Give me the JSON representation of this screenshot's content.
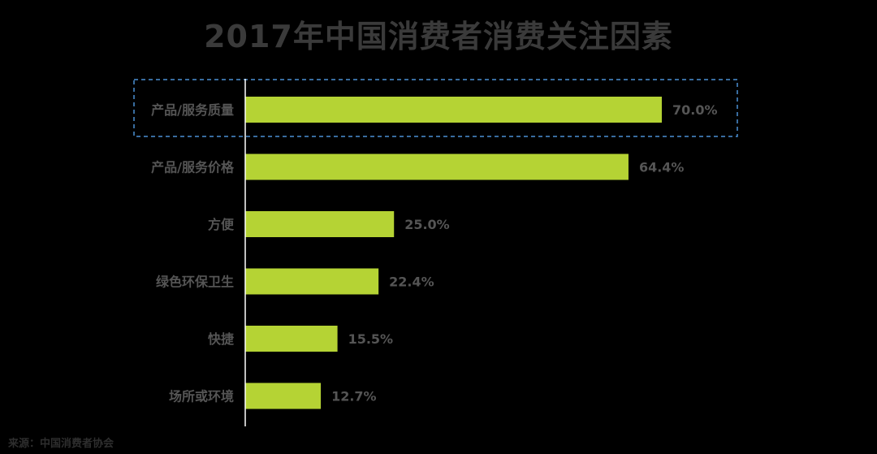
{
  "title": "2017年中国消费者消费关注因素",
  "source": "来源：中国消费者协会",
  "chart_data": {
    "type": "bar",
    "orientation": "horizontal",
    "title": "2017年中国消费者消费关注因素",
    "categories": [
      "产品/服务质量",
      "产品/服务价格",
      "方便",
      "绿色环保卫生",
      "快捷",
      "场所或环境"
    ],
    "values": [
      70.0,
      64.4,
      25.0,
      22.4,
      15.5,
      12.7
    ],
    "data_labels": [
      "70.0%",
      "64.4%",
      "25.0%",
      "22.4%",
      "15.5%",
      "12.7%"
    ],
    "unit": "%",
    "xlim": [
      0,
      70
    ],
    "grid": false,
    "legend": "none",
    "highlighted_category": "产品/服务质量",
    "colors": {
      "bar": "#b5d334",
      "axis": "#ffffff",
      "category_text": "#555555",
      "value_text": "#555555",
      "highlight_border": "#4a8fd4"
    }
  }
}
